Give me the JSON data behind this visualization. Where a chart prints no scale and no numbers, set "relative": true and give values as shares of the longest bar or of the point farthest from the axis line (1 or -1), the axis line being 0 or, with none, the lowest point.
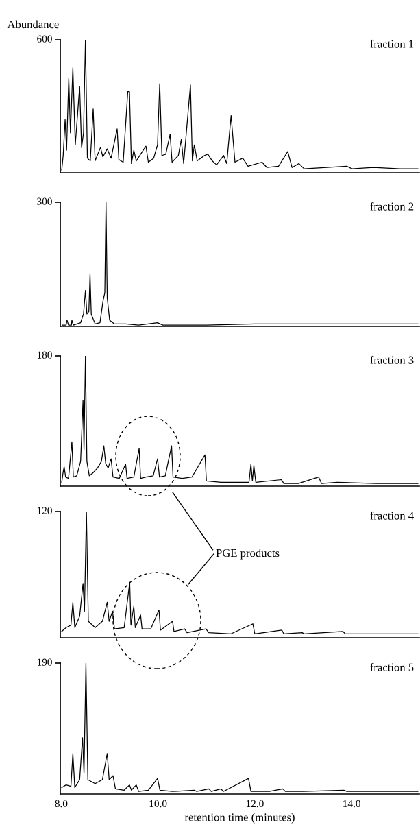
{
  "chart_data": [
    {
      "type": "line",
      "title": "fraction 1",
      "ylabel": "Abundance",
      "color": "#000000",
      "xlim": [
        7.98,
        15.4
      ],
      "relative": true,
      "tick_labels": false,
      "annotations": [
        "600"
      ],
      "x": [
        8.01,
        8.04,
        8.08,
        8.11,
        8.155,
        8.19,
        8.24,
        8.29,
        8.38,
        8.42,
        8.46,
        8.5,
        8.54,
        8.6,
        8.66,
        8.7,
        8.81,
        8.86,
        8.95,
        9.03,
        9.155,
        9.19,
        9.28,
        9.375,
        9.41,
        9.45,
        9.5,
        9.55,
        9.75,
        9.8,
        9.91,
        9.99,
        10.035,
        10.08,
        10.16,
        10.25,
        10.29,
        10.42,
        10.48,
        10.53,
        10.67,
        10.71,
        10.75,
        10.81,
        10.96,
        11.03,
        11.12,
        11.21,
        11.355,
        11.42,
        11.51,
        11.59,
        11.75,
        11.86,
        12.15,
        12.25,
        12.49,
        12.68,
        12.77,
        12.91,
        13.02,
        13.9,
        14.01,
        14.45,
        15.0,
        15.37
      ],
      "values": [
        0.02,
        0.13,
        0.4,
        0.17,
        0.71,
        0.3,
        0.79,
        0.21,
        0.65,
        0.19,
        0.3,
        1,
        0.11,
        0.09,
        0.48,
        0.09,
        0.19,
        0.12,
        0.18,
        0.11,
        0.33,
        0.1,
        0.08,
        0.61,
        0.61,
        0.07,
        0.17,
        0.09,
        0.2,
        0.08,
        0.11,
        0.21,
        0.67,
        0.13,
        0.14,
        0.29,
        0.08,
        0.13,
        0.25,
        0.07,
        0.66,
        0.09,
        0.21,
        0.09,
        0.13,
        0.14,
        0.09,
        0.06,
        0.13,
        0.07,
        0.43,
        0.08,
        0.11,
        0.05,
        0.08,
        0.04,
        0.05,
        0.16,
        0.04,
        0.07,
        0.03,
        0.05,
        0.03,
        0.04,
        0.03,
        0.03
      ]
    },
    {
      "type": "line",
      "title": "fraction 2",
      "color": "#000000",
      "xlim": [
        7.98,
        15.4
      ],
      "relative": true,
      "tick_labels": false,
      "annotations": [
        "300"
      ],
      "x": [
        8.02,
        8.1,
        8.12,
        8.15,
        8.21,
        8.22,
        8.25,
        8.4,
        8.46,
        8.5,
        8.53,
        8.57,
        8.595,
        8.62,
        8.7,
        8.8,
        8.865,
        8.9,
        8.925,
        8.95,
        9.0,
        9.1,
        9.33,
        9.6,
        9.99,
        10.1,
        11.0,
        12.0,
        13.0,
        14.0,
        15.37
      ],
      "values": [
        0.01,
        0.01,
        0.05,
        0.01,
        0.01,
        0.05,
        0.01,
        0.03,
        0.1,
        0.29,
        0.1,
        0.12,
        0.42,
        0.1,
        0.02,
        0.03,
        0.21,
        0.27,
        1,
        0.23,
        0.05,
        0.02,
        0.02,
        0.01,
        0.03,
        0.01,
        0.01,
        0.02,
        0.02,
        0.02,
        0.02
      ]
    },
    {
      "type": "line",
      "title": "fraction 3",
      "color": "#000000",
      "xlim": [
        7.98,
        15.4
      ],
      "relative": true,
      "tick_labels": false,
      "annotations": [
        "180"
      ],
      "x": [
        8.01,
        8.04,
        8.06,
        8.09,
        8.15,
        8.22,
        8.25,
        8.32,
        8.4,
        8.45,
        8.47,
        8.5,
        8.53,
        8.58,
        8.65,
        8.75,
        8.83,
        8.88,
        8.92,
        8.97,
        9.03,
        9.07,
        9.2,
        9.33,
        9.36,
        9.5,
        9.61,
        9.64,
        9.75,
        9.9,
        9.99,
        10.03,
        10.15,
        10.28,
        10.31,
        10.5,
        10.7,
        10.97,
        11.0,
        11.3,
        11.88,
        11.92,
        11.95,
        11.98,
        12.02,
        12.55,
        12.6,
        12.9,
        13.32,
        13.38,
        13.7,
        14.5,
        15.37
      ],
      "values": [
        0.03,
        0.11,
        0.15,
        0.07,
        0.06,
        0.34,
        0.07,
        0.08,
        0.19,
        0.66,
        0.28,
        1,
        0.19,
        0.08,
        0.1,
        0.14,
        0.19,
        0.31,
        0.17,
        0.14,
        0.21,
        0.07,
        0.06,
        0.17,
        0.06,
        0.07,
        0.29,
        0.06,
        0.07,
        0.08,
        0.21,
        0.07,
        0.08,
        0.31,
        0.07,
        0.06,
        0.07,
        0.24,
        0.04,
        0.03,
        0.03,
        0.17,
        0.04,
        0.16,
        0.03,
        0.05,
        0.02,
        0.02,
        0.07,
        0.02,
        0.03,
        0.02,
        0.02
      ]
    },
    {
      "type": "line",
      "title": "fraction 4",
      "color": "#000000",
      "xlim": [
        7.98,
        15.4
      ],
      "relative": true,
      "tick_labels": false,
      "annotations": [
        "120",
        "PGE products"
      ],
      "x": [
        8.01,
        8.1,
        8.2,
        8.24,
        8.28,
        8.38,
        8.45,
        8.48,
        8.52,
        8.56,
        8.7,
        8.85,
        8.95,
        8.99,
        9.06,
        9.1,
        9.3,
        9.415,
        9.44,
        9.5,
        9.53,
        9.64,
        9.67,
        9.85,
        10.02,
        10.05,
        10.3,
        10.33,
        10.55,
        10.6,
        10.99,
        11.05,
        11.5,
        11.96,
        12.0,
        12.56,
        12.6,
        12.98,
        13.02,
        13.82,
        13.87,
        14.5,
        15.37
      ],
      "values": [
        0.05,
        0.08,
        0.1,
        0.28,
        0.08,
        0.17,
        0.43,
        0.21,
        1,
        0.13,
        0.08,
        0.13,
        0.28,
        0.13,
        0.21,
        0.07,
        0.08,
        0.44,
        0.1,
        0.25,
        0.08,
        0.18,
        0.07,
        0.07,
        0.22,
        0.06,
        0.13,
        0.05,
        0.07,
        0.04,
        0.07,
        0.04,
        0.03,
        0.11,
        0.03,
        0.06,
        0.03,
        0.04,
        0.03,
        0.05,
        0.03,
        0.03,
        0.03
      ]
    },
    {
      "type": "line",
      "title": "fraction 5",
      "xlabel": "retention time (minutes)",
      "color": "#000000",
      "xlim": [
        7.98,
        15.4
      ],
      "relative": true,
      "tick_labels": "x",
      "annotations": [
        "190"
      ],
      "xticks": [
        {
          "value": 8,
          "label": "8.0"
        },
        {
          "value": 10,
          "label": "10.0"
        },
        {
          "value": 12,
          "label": "12.0"
        },
        {
          "value": 14,
          "label": "14.0"
        }
      ],
      "x": [
        8.01,
        8.1,
        8.2,
        8.24,
        8.28,
        8.38,
        8.44,
        8.47,
        8.51,
        8.55,
        8.7,
        8.85,
        8.95,
        8.99,
        9.07,
        9.12,
        9.3,
        9.41,
        9.45,
        9.55,
        9.6,
        9.8,
        9.99,
        10.04,
        10.3,
        10.75,
        10.8,
        11.05,
        11.1,
        11.3,
        11.35,
        11.87,
        11.92,
        12.3,
        12.58,
        12.63,
        13.0,
        13.84,
        13.9,
        14.5,
        15.37
      ],
      "values": [
        0.05,
        0.07,
        0.06,
        0.31,
        0.05,
        0.11,
        0.43,
        0.16,
        1,
        0.11,
        0.08,
        0.11,
        0.31,
        0.11,
        0.14,
        0.04,
        0.03,
        0.07,
        0.03,
        0.07,
        0.02,
        0.03,
        0.12,
        0.03,
        0.02,
        0.03,
        0.02,
        0.04,
        0.02,
        0.04,
        0.02,
        0.12,
        0.02,
        0.02,
        0.04,
        0.02,
        0.02,
        0.03,
        0.02,
        0.02,
        0.02
      ]
    }
  ]
}
